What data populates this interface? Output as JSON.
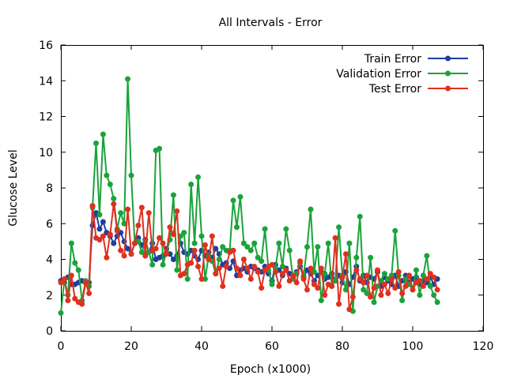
{
  "chart_data": {
    "type": "line",
    "title": "All Intervals - Error",
    "xlabel": "Epoch (x1000)",
    "ylabel": "Glucose Level",
    "xlim": [
      0,
      120
    ],
    "ylim": [
      0,
      16
    ],
    "xticks": [
      0,
      20,
      40,
      60,
      80,
      100,
      120
    ],
    "yticks": [
      0,
      2,
      4,
      6,
      8,
      10,
      12,
      14,
      16
    ],
    "grid": false,
    "legend_position": "top-right",
    "x": [
      0,
      1,
      2,
      3,
      4,
      5,
      6,
      7,
      8,
      9,
      10,
      11,
      12,
      13,
      14,
      15,
      16,
      17,
      18,
      19,
      20,
      21,
      22,
      23,
      24,
      25,
      26,
      27,
      28,
      29,
      30,
      31,
      32,
      33,
      34,
      35,
      36,
      37,
      38,
      39,
      40,
      41,
      42,
      43,
      44,
      45,
      46,
      47,
      48,
      49,
      50,
      51,
      52,
      53,
      54,
      55,
      56,
      57,
      58,
      59,
      60,
      61,
      62,
      63,
      64,
      65,
      66,
      67,
      68,
      69,
      70,
      71,
      72,
      73,
      74,
      75,
      76,
      77,
      78,
      79,
      80,
      81,
      82,
      83,
      84,
      85,
      86,
      87,
      88,
      89,
      90,
      91,
      92,
      93,
      94,
      95,
      96,
      97,
      98,
      99,
      100,
      101,
      102,
      103,
      104,
      105,
      106,
      107
    ],
    "series": [
      {
        "name": "Train Error",
        "color": "#1f3f9f",
        "values": [
          2.8,
          2.7,
          3.0,
          2.6,
          2.6,
          2.7,
          2.8,
          2.7,
          2.7,
          5.9,
          6.6,
          5.7,
          6.1,
          5.5,
          5.3,
          4.9,
          5.3,
          5.5,
          5.0,
          4.6,
          4.3,
          4.9,
          5.2,
          4.8,
          5.1,
          4.4,
          4.9,
          4.0,
          4.1,
          4.2,
          4.6,
          4.3,
          4.0,
          4.2,
          4.9,
          4.4,
          4.3,
          4.5,
          4.2,
          4.0,
          4.5,
          4.2,
          4.4,
          4.1,
          4.6,
          4.3,
          3.7,
          3.8,
          3.5,
          3.9,
          3.1,
          3.4,
          3.5,
          3.3,
          3.6,
          3.5,
          3.4,
          3.3,
          3.6,
          3.2,
          2.8,
          3.7,
          3.4,
          3.1,
          3.5,
          3.2,
          3.0,
          3.3,
          3.6,
          3.0,
          3.4,
          3.2,
          2.8,
          3.1,
          3.3,
          2.9,
          3.0,
          3.2,
          2.8,
          3.1,
          2.7,
          3.3,
          2.6,
          3.0,
          3.6,
          2.8,
          3.1,
          2.7,
          3.0,
          2.9,
          3.3,
          2.5,
          3.0,
          2.8,
          2.6,
          3.1,
          2.5,
          2.8,
          3.1,
          2.7,
          2.9,
          3.0,
          2.6,
          2.8,
          2.7,
          3.0,
          2.6,
          2.9
        ]
      },
      {
        "name": "Validation Error",
        "color": "#1aa33a",
        "values": [
          1.0,
          2.9,
          2.0,
          4.9,
          3.8,
          3.4,
          1.7,
          2.8,
          2.5,
          6.9,
          10.5,
          6.5,
          11.0,
          8.7,
          8.2,
          7.4,
          5.7,
          6.6,
          6.0,
          14.1,
          8.7,
          4.9,
          5.0,
          4.4,
          5.0,
          4.4,
          3.7,
          10.1,
          10.2,
          3.7,
          4.4,
          5.1,
          7.6,
          3.4,
          5.3,
          5.5,
          2.9,
          8.2,
          4.9,
          8.6,
          5.3,
          2.9,
          4.2,
          3.9,
          3.2,
          4.0,
          4.7,
          4.5,
          4.5,
          7.3,
          5.8,
          7.5,
          4.9,
          4.7,
          4.5,
          4.9,
          4.1,
          3.9,
          5.7,
          3.4,
          2.6,
          3.5,
          4.9,
          3.6,
          5.7,
          4.5,
          2.9,
          3.2,
          3.8,
          3.1,
          4.7,
          6.8,
          3.3,
          4.7,
          1.7,
          3.2,
          4.9,
          2.5,
          2.8,
          5.8,
          3.1,
          2.3,
          4.9,
          1.1,
          4.1,
          6.4,
          2.3,
          2.1,
          4.1,
          1.6,
          2.5,
          2.8,
          3.2,
          2.9,
          3.1,
          5.6,
          3.1,
          1.7,
          2.9,
          2.6,
          2.3,
          3.4,
          2.0,
          3.1,
          4.2,
          2.5,
          2.0,
          1.6
        ]
      },
      {
        "name": "Test Error",
        "color": "#e0301e",
        "values": [
          2.7,
          2.9,
          1.7,
          3.1,
          1.8,
          1.6,
          1.5,
          2.7,
          2.1,
          7.0,
          5.2,
          5.1,
          5.3,
          4.1,
          5.4,
          7.1,
          5.6,
          4.5,
          4.2,
          6.8,
          4.3,
          4.9,
          5.9,
          6.9,
          4.2,
          6.6,
          4.5,
          4.6,
          5.2,
          4.9,
          4.3,
          5.8,
          5.4,
          6.7,
          3.1,
          3.2,
          3.7,
          3.8,
          4.5,
          3.6,
          2.9,
          4.8,
          4.0,
          5.3,
          3.2,
          3.5,
          2.5,
          3.6,
          4.4,
          4.5,
          3.5,
          3.1,
          4.0,
          3.5,
          2.9,
          3.6,
          3.3,
          2.4,
          3.4,
          3.6,
          3.7,
          3.3,
          2.5,
          3.2,
          3.4,
          2.8,
          3.1,
          2.7,
          3.9,
          2.9,
          2.3,
          3.5,
          2.6,
          2.4,
          3.5,
          2.0,
          2.6,
          2.5,
          5.2,
          1.5,
          3.0,
          4.3,
          1.2,
          1.9,
          3.4,
          2.9,
          2.7,
          3.1,
          1.9,
          2.4,
          3.4,
          2.0,
          2.6,
          2.1,
          2.9,
          2.4,
          3.3,
          2.1,
          2.5,
          3.1,
          2.3,
          2.7,
          2.8,
          2.5,
          2.9,
          3.2,
          3.0,
          2.3
        ]
      }
    ]
  }
}
